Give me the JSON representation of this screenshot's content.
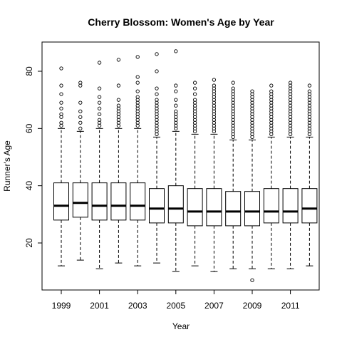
{
  "chart_data": {
    "type": "boxplot",
    "title": "Cherry Blossom: Women's Age by Year",
    "xlabel": "Year",
    "ylabel": "Runner's Age",
    "ylim": [
      5,
      90
    ],
    "yticks": [
      20,
      40,
      60,
      80
    ],
    "x_tick_labels": [
      "1999",
      "2001",
      "2003",
      "2005",
      "2007",
      "2009",
      "2011"
    ],
    "x_tick_years": [
      1999,
      2001,
      2003,
      2005,
      2007,
      2009,
      2011
    ],
    "grid": false,
    "legend": "none",
    "categories": [
      1999,
      2000,
      2001,
      2002,
      2003,
      2004,
      2005,
      2006,
      2007,
      2008,
      2009,
      2010,
      2011,
      2012
    ],
    "boxes": [
      {
        "year": 1999,
        "q1": 28,
        "median": 33,
        "q3": 41,
        "lower_whisker": 12,
        "upper_whisker": 60,
        "outliers": [
          61,
          62,
          64,
          65,
          67,
          69,
          72,
          75,
          81
        ]
      },
      {
        "year": 2000,
        "q1": 29,
        "median": 34,
        "q3": 41,
        "lower_whisker": 14,
        "upper_whisker": 59,
        "outliers": [
          60,
          62,
          64,
          66,
          69,
          75,
          76
        ]
      },
      {
        "year": 2001,
        "q1": 28,
        "median": 33,
        "q3": 41,
        "lower_whisker": 11,
        "upper_whisker": 60,
        "outliers": [
          61,
          62,
          63,
          65,
          67,
          69,
          71,
          74,
          83
        ]
      },
      {
        "year": 2002,
        "q1": 28,
        "median": 33,
        "q3": 41,
        "lower_whisker": 13,
        "upper_whisker": 60,
        "outliers": [
          61,
          62,
          63,
          64,
          65,
          66,
          67,
          68,
          70,
          75,
          84
        ]
      },
      {
        "year": 2003,
        "q1": 28,
        "median": 33,
        "q3": 41,
        "lower_whisker": 12,
        "upper_whisker": 60,
        "outliers": [
          61,
          62,
          63,
          64,
          65,
          66,
          67,
          68,
          69,
          70,
          71,
          73,
          76,
          78,
          85
        ]
      },
      {
        "year": 2004,
        "q1": 27,
        "median": 32,
        "q3": 39,
        "lower_whisker": 13,
        "upper_whisker": 57,
        "outliers": [
          58,
          59,
          60,
          61,
          62,
          63,
          64,
          65,
          66,
          67,
          68,
          69,
          70,
          72,
          74,
          80,
          86
        ]
      },
      {
        "year": 2005,
        "q1": 27,
        "median": 32,
        "q3": 40,
        "lower_whisker": 10,
        "upper_whisker": 59,
        "outliers": [
          60,
          61,
          62,
          63,
          64,
          65,
          66,
          68,
          70,
          73,
          75,
          87
        ]
      },
      {
        "year": 2006,
        "q1": 26,
        "median": 31,
        "q3": 39,
        "lower_whisker": 12,
        "upper_whisker": 58,
        "outliers": [
          59,
          60,
          61,
          62,
          63,
          64,
          65,
          66,
          67,
          68,
          69,
          70,
          72,
          74,
          76
        ]
      },
      {
        "year": 2007,
        "q1": 26,
        "median": 31,
        "q3": 39,
        "lower_whisker": 10,
        "upper_whisker": 58,
        "outliers": [
          59,
          60,
          61,
          62,
          63,
          64,
          65,
          66,
          67,
          68,
          69,
          70,
          71,
          72,
          73,
          74,
          75,
          77
        ]
      },
      {
        "year": 2008,
        "q1": 26,
        "median": 31,
        "q3": 38,
        "lower_whisker": 11,
        "upper_whisker": 56,
        "outliers": [
          57,
          58,
          59,
          60,
          61,
          62,
          63,
          64,
          65,
          66,
          67,
          68,
          69,
          70,
          71,
          72,
          73,
          74,
          76
        ]
      },
      {
        "year": 2009,
        "q1": 26,
        "median": 31,
        "q3": 38,
        "lower_whisker": 11,
        "upper_whisker": 56,
        "outliers": [
          7,
          57,
          58,
          59,
          60,
          61,
          62,
          63,
          64,
          65,
          66,
          67,
          68,
          69,
          70,
          71,
          72,
          73
        ]
      },
      {
        "year": 2010,
        "q1": 27,
        "median": 31,
        "q3": 39,
        "lower_whisker": 11,
        "upper_whisker": 57,
        "outliers": [
          58,
          59,
          60,
          61,
          62,
          63,
          64,
          65,
          66,
          67,
          68,
          69,
          70,
          71,
          72,
          73,
          75
        ]
      },
      {
        "year": 2011,
        "q1": 27,
        "median": 31,
        "q3": 39,
        "lower_whisker": 11,
        "upper_whisker": 57,
        "outliers": [
          58,
          59,
          60,
          61,
          62,
          63,
          64,
          65,
          66,
          67,
          68,
          69,
          70,
          71,
          72,
          73,
          74,
          75,
          76
        ]
      },
      {
        "year": 2012,
        "q1": 27,
        "median": 32,
        "q3": 39,
        "lower_whisker": 12,
        "upper_whisker": 57,
        "outliers": [
          58,
          59,
          60,
          61,
          62,
          63,
          64,
          65,
          66,
          67,
          68,
          69,
          70,
          71,
          72,
          73,
          75
        ]
      }
    ]
  }
}
